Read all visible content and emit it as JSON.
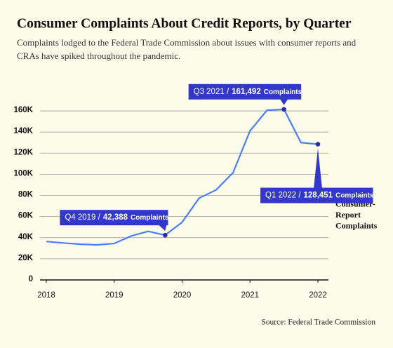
{
  "chart_data": {
    "type": "line",
    "title": "Consumer Complaints About Credit Reports, by Quarter",
    "subtitle": "Complaints lodged to the Federal Trade Commission about issues with consumer reports and CRAs have spiked throughout the pandemic.",
    "source": "Source: Federal Trade Commission",
    "x": [
      2018,
      2018.25,
      2018.5,
      2018.75,
      2019,
      2019.25,
      2019.5,
      2019.75,
      2020,
      2020.25,
      2020.5,
      2020.75,
      2021,
      2021.25,
      2021.5,
      2021.75,
      2022
    ],
    "series": [
      {
        "name": "FTC Consumer-Report Complaints",
        "color": "#4a7ff0",
        "values": [
          36400,
          35000,
          33800,
          33200,
          34500,
          41600,
          46000,
          42388,
          54600,
          77400,
          85200,
          101500,
          141100,
          160600,
          161492,
          130000,
          128451
        ],
        "value_labels": [
          null,
          null,
          null,
          null,
          null,
          null,
          null,
          "42,388",
          null,
          null,
          null,
          null,
          null,
          null,
          "161,492",
          null,
          "128,451"
        ],
        "point_labels": [
          null,
          null,
          null,
          null,
          null,
          null,
          null,
          "Q4 2019 /",
          null,
          null,
          null,
          null,
          null,
          null,
          "Q3 2021 /",
          null,
          "Q1 2022 /"
        ],
        "value_unit": "Complaints"
      }
    ],
    "annotation_color": "#3438c8",
    "xlim": [
      2017.98,
      2022.1
    ],
    "xticks": [
      2018,
      2019,
      2020,
      2021,
      2022
    ],
    "ylim": [
      0,
      168000
    ],
    "yticks": [
      0,
      {
        "value": 20000,
        "label": "20K"
      },
      {
        "value": 40000,
        "label": "40K"
      },
      {
        "value": 60000,
        "label": "60K"
      },
      {
        "value": 80000,
        "label": "80K"
      },
      {
        "value": 100000,
        "label": "100K"
      },
      {
        "value": 120000,
        "label": "120K"
      },
      {
        "value": 140000,
        "label": "140K"
      },
      {
        "value": 160000,
        "label": "160K"
      }
    ],
    "grid": true
  }
}
